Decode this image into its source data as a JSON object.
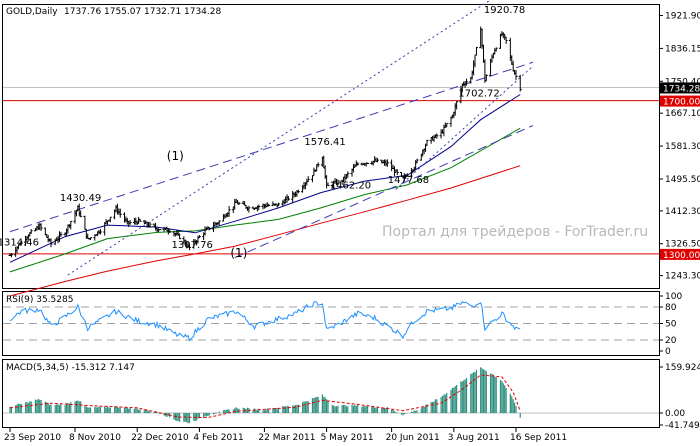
{
  "chart_data": {
    "type": "candlestick",
    "symbol_label": "GOLD,Daily",
    "ohlc": [
      "1737.76",
      "1755.07",
      "1732.71",
      "1734.28"
    ],
    "price_ticks": [
      "1921.90",
      "1836.15",
      "1750.40",
      "1667.10",
      "1581.30",
      "1495.50",
      "1412.30",
      "1326.50",
      "1243.30"
    ],
    "current_price_label": "1734.28",
    "level_labels": [
      "1700.00",
      "1300.00"
    ],
    "level_values": [
      1700,
      1300
    ],
    "annotations": [
      {
        "text": "1920.78",
        "date": "2011-09-06",
        "price": 1920.78
      },
      {
        "text": "1702.72",
        "date": "2011-08-19",
        "price": 1702.72
      },
      {
        "text": "1576.41",
        "date": "2011-05-02",
        "price": 1576.41
      },
      {
        "text": "1462.20",
        "date": "2011-05-20",
        "price": 1462.2
      },
      {
        "text": "1477.68",
        "date": "2011-06-30",
        "price": 1477.68
      },
      {
        "text": "1430.49",
        "date": "2010-11-10",
        "price": 1430.49
      },
      {
        "text": "1314.46",
        "date": "2010-09-27",
        "price": 1314.46
      },
      {
        "text": "1307.76",
        "date": "2011-01-28",
        "price": 1307.76
      }
    ],
    "wave_labels": [
      {
        "text": "(1)",
        "date": "2011-01-19",
        "price": 1545
      },
      {
        "text": "(1)",
        "date": "2011-03-05",
        "price": 1292
      }
    ],
    "watermark": "Портал для трейдеров - ForTrader.ru",
    "x_ticks": [
      "23 Sep 2010",
      "8 Nov 2010",
      "22 Dec 2010",
      "4 Feb 2011",
      "22 Mar 2011",
      "5 May 2011",
      "20 Jun 2011",
      "3 Aug 2011",
      "16 Sep 2011"
    ],
    "x_tick_dates": [
      "2010-09-23",
      "2010-11-08",
      "2010-12-22",
      "2011-02-04",
      "2011-03-22",
      "2011-05-05",
      "2011-06-20",
      "2011-08-03",
      "2011-09-16"
    ],
    "close_path": [
      [
        "2010-09-23",
        1296
      ],
      [
        "2010-09-27",
        1314
      ],
      [
        "2010-10-06",
        1350
      ],
      [
        "2010-10-14",
        1372
      ],
      [
        "2010-10-22",
        1326
      ],
      [
        "2010-11-01",
        1358
      ],
      [
        "2010-11-10",
        1420
      ],
      [
        "2010-11-17",
        1337
      ],
      [
        "2010-11-26",
        1362
      ],
      [
        "2010-12-07",
        1418
      ],
      [
        "2010-12-15",
        1380
      ],
      [
        "2010-12-23",
        1385
      ],
      [
        "2011-01-05",
        1366
      ],
      [
        "2011-01-14",
        1362
      ],
      [
        "2011-01-21",
        1344
      ],
      [
        "2011-01-28",
        1316
      ],
      [
        "2011-02-08",
        1360
      ],
      [
        "2011-02-18",
        1385
      ],
      [
        "2011-03-02",
        1434
      ],
      [
        "2011-03-11",
        1420
      ],
      [
        "2011-03-21",
        1426
      ],
      [
        "2011-04-01",
        1428
      ],
      [
        "2011-04-13",
        1458
      ],
      [
        "2011-04-25",
        1508
      ],
      [
        "2011-05-02",
        1555
      ],
      [
        "2011-05-05",
        1475
      ],
      [
        "2011-05-16",
        1492
      ],
      [
        "2011-05-27",
        1535
      ],
      [
        "2011-06-08",
        1542
      ],
      [
        "2011-06-17",
        1535
      ],
      [
        "2011-06-28",
        1495
      ],
      [
        "2011-07-06",
        1528
      ],
      [
        "2011-07-15",
        1592
      ],
      [
        "2011-07-25",
        1615
      ],
      [
        "2011-08-02",
        1660
      ],
      [
        "2011-08-09",
        1742
      ],
      [
        "2011-08-15",
        1758
      ],
      [
        "2011-08-22",
        1890
      ],
      [
        "2011-08-25",
        1754
      ],
      [
        "2011-08-31",
        1825
      ],
      [
        "2011-09-06",
        1874
      ],
      [
        "2011-09-09",
        1855
      ],
      [
        "2011-09-14",
        1782
      ],
      [
        "2011-09-19",
        1734
      ]
    ],
    "ma_fast": [
      [
        "2010-09-23",
        1278
      ],
      [
        "2010-11-01",
        1345
      ],
      [
        "2010-12-01",
        1375
      ],
      [
        "2011-01-05",
        1370
      ],
      [
        "2011-02-01",
        1355
      ],
      [
        "2011-03-01",
        1385
      ],
      [
        "2011-04-01",
        1420
      ],
      [
        "2011-05-01",
        1460
      ],
      [
        "2011-06-01",
        1490
      ],
      [
        "2011-07-01",
        1505
      ],
      [
        "2011-08-01",
        1580
      ],
      [
        "2011-08-22",
        1650
      ],
      [
        "2011-09-19",
        1716
      ]
    ],
    "ma_medium": [
      [
        "2010-09-23",
        1253
      ],
      [
        "2010-11-01",
        1300
      ],
      [
        "2010-12-01",
        1340
      ],
      [
        "2011-01-05",
        1356
      ],
      [
        "2011-02-01",
        1360
      ],
      [
        "2011-03-01",
        1375
      ],
      [
        "2011-04-01",
        1390
      ],
      [
        "2011-05-01",
        1420
      ],
      [
        "2011-06-01",
        1455
      ],
      [
        "2011-07-01",
        1480
      ],
      [
        "2011-08-01",
        1525
      ],
      [
        "2011-09-19",
        1628
      ]
    ],
    "ma_slow": [
      [
        "2010-09-23",
        1190
      ],
      [
        "2010-11-01",
        1228
      ],
      [
        "2010-12-01",
        1255
      ],
      [
        "2011-01-05",
        1282
      ],
      [
        "2011-02-01",
        1300
      ],
      [
        "2011-03-01",
        1320
      ],
      [
        "2011-04-01",
        1350
      ],
      [
        "2011-05-01",
        1380
      ],
      [
        "2011-06-01",
        1410
      ],
      [
        "2011-07-01",
        1440
      ],
      [
        "2011-08-01",
        1472
      ],
      [
        "2011-09-19",
        1530
      ]
    ],
    "trendlines": [
      {
        "style": "dash",
        "from": [
          "2010-09-23",
          1358
        ],
        "to": [
          "2011-09-28",
          1800
        ]
      },
      {
        "style": "dash",
        "from": [
          "2011-03-01",
          1290
        ],
        "to": [
          "2011-09-28",
          1635
        ]
      },
      {
        "style": "dot",
        "from": [
          "2010-11-03",
          1245
        ],
        "to": [
          "2011-09-28",
          2035
        ]
      },
      {
        "style": "dot",
        "from": [
          "2011-06-23",
          1468
        ],
        "to": [
          "2011-09-28",
          1790
        ]
      }
    ],
    "rsi": {
      "label": "RSI(9) 35.5285",
      "ticks": [
        "100",
        "80",
        "50",
        "20",
        "0"
      ],
      "levels": [
        80,
        50,
        20
      ],
      "series": [
        [
          "2010-09-23",
          58
        ],
        [
          "2010-10-01",
          72
        ],
        [
          "2010-10-14",
          76
        ],
        [
          "2010-10-22",
          45
        ],
        [
          "2010-11-01",
          62
        ],
        [
          "2010-11-10",
          80
        ],
        [
          "2010-11-17",
          42
        ],
        [
          "2010-12-07",
          72
        ],
        [
          "2010-12-22",
          55
        ],
        [
          "2011-01-05",
          48
        ],
        [
          "2011-01-20",
          28
        ],
        [
          "2011-01-28",
          24
        ],
        [
          "2011-02-10",
          58
        ],
        [
          "2011-03-02",
          72
        ],
        [
          "2011-03-15",
          45
        ],
        [
          "2011-04-13",
          68
        ],
        [
          "2011-04-25",
          85
        ],
        [
          "2011-05-02",
          88
        ],
        [
          "2011-05-05",
          38
        ],
        [
          "2011-05-16",
          52
        ],
        [
          "2011-05-27",
          68
        ],
        [
          "2011-06-08",
          60
        ],
        [
          "2011-06-28",
          28
        ],
        [
          "2011-07-06",
          55
        ],
        [
          "2011-07-15",
          72
        ],
        [
          "2011-08-02",
          78
        ],
        [
          "2011-08-09",
          88
        ],
        [
          "2011-08-16",
          82
        ],
        [
          "2011-08-22",
          92
        ],
        [
          "2011-08-25",
          42
        ],
        [
          "2011-09-06",
          68
        ],
        [
          "2011-09-14",
          45
        ],
        [
          "2011-09-19",
          35.5
        ]
      ]
    },
    "macd": {
      "label": "MACD(5,34,5) -15.312 7.147",
      "ticks": [
        "159.924",
        "0.00",
        "-41.749"
      ],
      "bars": [
        [
          "2010-09-23",
          22
        ],
        [
          "2010-10-01",
          32
        ],
        [
          "2010-10-14",
          48
        ],
        [
          "2010-10-22",
          28
        ],
        [
          "2010-11-01",
          30
        ],
        [
          "2010-11-10",
          46
        ],
        [
          "2010-11-17",
          18
        ],
        [
          "2010-12-07",
          22
        ],
        [
          "2010-12-22",
          15
        ],
        [
          "2011-01-05",
          4
        ],
        [
          "2011-01-20",
          -28
        ],
        [
          "2011-01-28",
          -34
        ],
        [
          "2011-02-10",
          -8
        ],
        [
          "2011-03-02",
          18
        ],
        [
          "2011-03-22",
          12
        ],
        [
          "2011-04-13",
          28
        ],
        [
          "2011-05-02",
          62
        ],
        [
          "2011-05-10",
          26
        ],
        [
          "2011-05-27",
          26
        ],
        [
          "2011-06-17",
          18
        ],
        [
          "2011-06-28",
          -6
        ],
        [
          "2011-07-10",
          14
        ],
        [
          "2011-07-25",
          56
        ],
        [
          "2011-08-09",
          112
        ],
        [
          "2011-08-22",
          158
        ],
        [
          "2011-08-30",
          136
        ],
        [
          "2011-09-06",
          112
        ],
        [
          "2011-09-14",
          48
        ],
        [
          "2011-09-19",
          -15.3
        ]
      ],
      "signal": [
        [
          "2010-09-23",
          18
        ],
        [
          "2010-10-22",
          34
        ],
        [
          "2010-11-17",
          26
        ],
        [
          "2010-12-22",
          18
        ],
        [
          "2011-01-20",
          -14
        ],
        [
          "2011-02-10",
          -16
        ],
        [
          "2011-03-02",
          6
        ],
        [
          "2011-04-13",
          20
        ],
        [
          "2011-05-02",
          44
        ],
        [
          "2011-05-27",
          30
        ],
        [
          "2011-06-28",
          8
        ],
        [
          "2011-07-25",
          34
        ],
        [
          "2011-08-09",
          82
        ],
        [
          "2011-08-22",
          132
        ],
        [
          "2011-09-06",
          126
        ],
        [
          "2011-09-14",
          72
        ],
        [
          "2011-09-19",
          7.1
        ]
      ]
    }
  }
}
